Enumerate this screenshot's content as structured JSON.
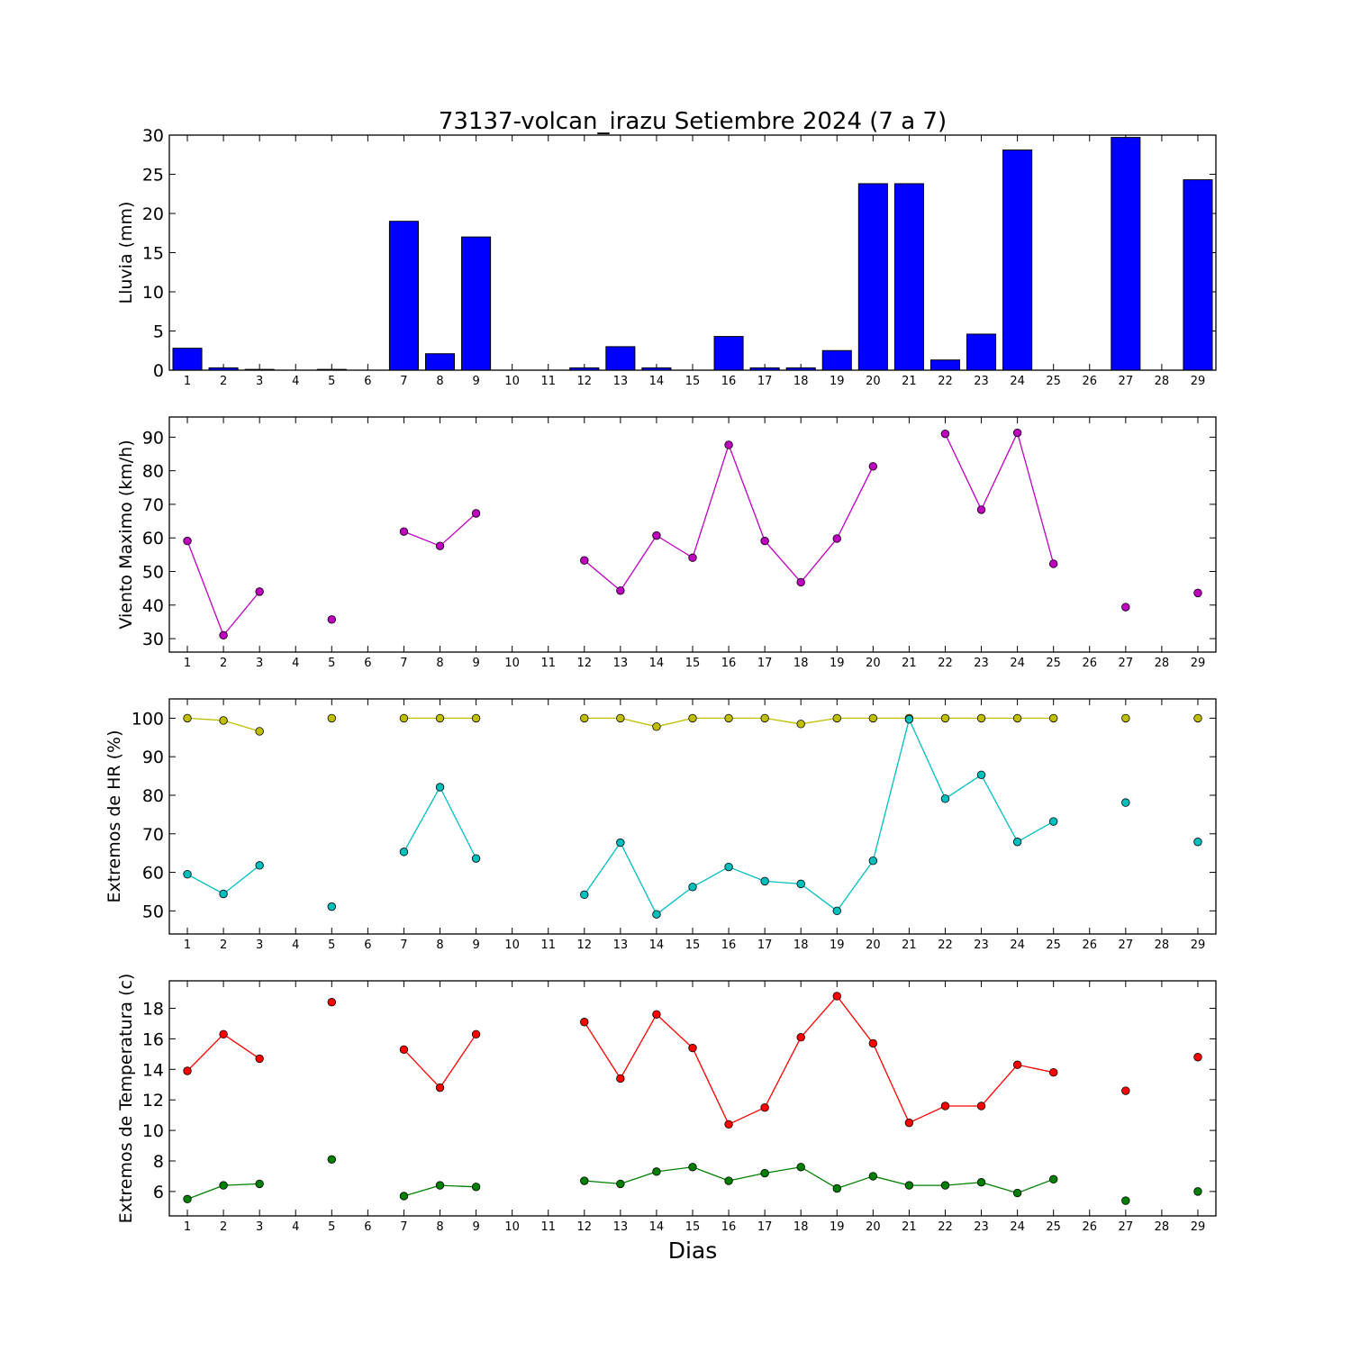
{
  "chart_data": [
    {
      "type": "bar",
      "title": "73137-volcan_irazu Setiembre 2024  (7 a 7)",
      "xlabel": "",
      "ylabel": "Lluvia (mm)",
      "categories": [
        1,
        2,
        3,
        4,
        5,
        6,
        7,
        8,
        9,
        10,
        11,
        12,
        13,
        14,
        15,
        16,
        17,
        18,
        19,
        20,
        21,
        22,
        23,
        24,
        25,
        26,
        27,
        28,
        29
      ],
      "x_ticks": [
        "1",
        "2",
        "3",
        "4",
        "5",
        "6",
        "7",
        "8",
        "9",
        "10",
        "11",
        "12",
        "13",
        "14",
        "15",
        "16",
        "17",
        "18",
        "19",
        "20",
        "21",
        "22",
        "23",
        "24",
        "25",
        "26",
        "27",
        "28",
        "29"
      ],
      "ylim": [
        0,
        30
      ],
      "y_ticks": [
        0,
        5,
        10,
        15,
        20,
        25,
        30
      ],
      "series": [
        {
          "color": "#0000ff",
          "values": [
            2.8,
            0.3,
            0.1,
            0,
            0.1,
            0,
            19.0,
            2.1,
            17.0,
            0,
            0,
            0.3,
            3.0,
            0.3,
            0,
            4.3,
            0.3,
            0.3,
            2.5,
            23.8,
            23.8,
            1.3,
            4.6,
            28.1,
            0,
            0,
            29.7,
            0,
            24.3
          ]
        }
      ],
      "grid": false
    },
    {
      "type": "line",
      "title": "",
      "xlabel": "",
      "ylabel": "Viento Maximo (km/h)",
      "x": [
        1,
        2,
        3,
        4,
        5,
        6,
        7,
        8,
        9,
        10,
        11,
        12,
        13,
        14,
        15,
        16,
        17,
        18,
        19,
        20,
        21,
        22,
        23,
        24,
        25,
        26,
        27,
        28,
        29
      ],
      "x_ticks": [
        "1",
        "2",
        "3",
        "4",
        "5",
        "6",
        "7",
        "8",
        "9",
        "10",
        "11",
        "12",
        "13",
        "14",
        "15",
        "16",
        "17",
        "18",
        "19",
        "20",
        "21",
        "22",
        "23",
        "24",
        "25",
        "26",
        "27",
        "28",
        "29"
      ],
      "ylim": [
        26,
        96
      ],
      "y_ticks": [
        30,
        40,
        50,
        60,
        70,
        80,
        90
      ],
      "series": [
        {
          "color": "#bf00bf",
          "values": [
            59.1,
            31.0,
            44.0,
            null,
            35.7,
            null,
            61.9,
            57.6,
            67.3,
            null,
            null,
            53.3,
            44.3,
            60.7,
            54.1,
            87.7,
            59.1,
            46.8,
            59.8,
            81.3,
            null,
            91.0,
            68.4,
            91.3,
            52.3,
            null,
            39.4,
            null,
            43.6
          ]
        }
      ],
      "grid": false
    },
    {
      "type": "line",
      "title": "",
      "xlabel": "",
      "ylabel": "Extremos de HR (%)",
      "x": [
        1,
        2,
        3,
        4,
        5,
        6,
        7,
        8,
        9,
        10,
        11,
        12,
        13,
        14,
        15,
        16,
        17,
        18,
        19,
        20,
        21,
        22,
        23,
        24,
        25,
        26,
        27,
        28,
        29
      ],
      "x_ticks": [
        "1",
        "2",
        "3",
        "4",
        "5",
        "6",
        "7",
        "8",
        "9",
        "10",
        "11",
        "12",
        "13",
        "14",
        "15",
        "16",
        "17",
        "18",
        "19",
        "20",
        "21",
        "22",
        "23",
        "24",
        "25",
        "26",
        "27",
        "28",
        "29"
      ],
      "ylim": [
        44,
        105
      ],
      "y_ticks": [
        50,
        60,
        70,
        80,
        90,
        100
      ],
      "series": [
        {
          "color": "#bfbf00",
          "values": [
            100,
            99.4,
            96.6,
            null,
            100,
            null,
            100,
            100,
            100,
            null,
            null,
            100,
            100,
            97.8,
            100,
            100,
            100,
            98.5,
            100,
            100,
            100,
            100,
            100,
            100,
            100,
            null,
            100,
            null,
            100
          ]
        },
        {
          "color": "#00bfbf",
          "values": [
            59.5,
            54.4,
            61.8,
            null,
            51.1,
            null,
            65.3,
            82.1,
            63.6,
            null,
            null,
            54.2,
            67.7,
            49.1,
            56.2,
            61.4,
            57.7,
            57.0,
            50.0,
            63.0,
            99.7,
            79.1,
            85.3,
            67.9,
            73.2,
            null,
            78.1,
            null,
            67.9
          ]
        }
      ],
      "grid": false
    },
    {
      "type": "line",
      "title": "",
      "xlabel": "Dias",
      "ylabel": "Extremos de Temperatura (c)",
      "x": [
        1,
        2,
        3,
        4,
        5,
        6,
        7,
        8,
        9,
        10,
        11,
        12,
        13,
        14,
        15,
        16,
        17,
        18,
        19,
        20,
        21,
        22,
        23,
        24,
        25,
        26,
        27,
        28,
        29
      ],
      "x_ticks": [
        "1",
        "2",
        "3",
        "4",
        "5",
        "6",
        "7",
        "8",
        "9",
        "10",
        "11",
        "12",
        "13",
        "14",
        "15",
        "16",
        "17",
        "18",
        "19",
        "20",
        "21",
        "22",
        "23",
        "24",
        "25",
        "26",
        "27",
        "28",
        "29"
      ],
      "ylim": [
        4.4,
        19.8
      ],
      "y_ticks": [
        6,
        8,
        10,
        12,
        14,
        16,
        18
      ],
      "series": [
        {
          "color": "#ff0000",
          "values": [
            13.9,
            16.3,
            14.7,
            null,
            18.4,
            null,
            15.3,
            12.8,
            16.3,
            null,
            null,
            17.1,
            13.4,
            17.6,
            15.4,
            10.4,
            11.5,
            16.1,
            18.8,
            15.7,
            10.5,
            11.6,
            11.6,
            14.3,
            13.8,
            null,
            12.6,
            null,
            14.8
          ]
        },
        {
          "color": "#008000",
          "values": [
            5.5,
            6.4,
            6.5,
            null,
            8.1,
            null,
            5.7,
            6.4,
            6.3,
            null,
            null,
            6.7,
            6.5,
            7.3,
            7.6,
            6.7,
            7.2,
            7.6,
            6.2,
            7.0,
            6.4,
            6.4,
            6.6,
            5.9,
            6.8,
            null,
            5.4,
            null,
            6.0
          ]
        }
      ],
      "grid": false
    }
  ]
}
